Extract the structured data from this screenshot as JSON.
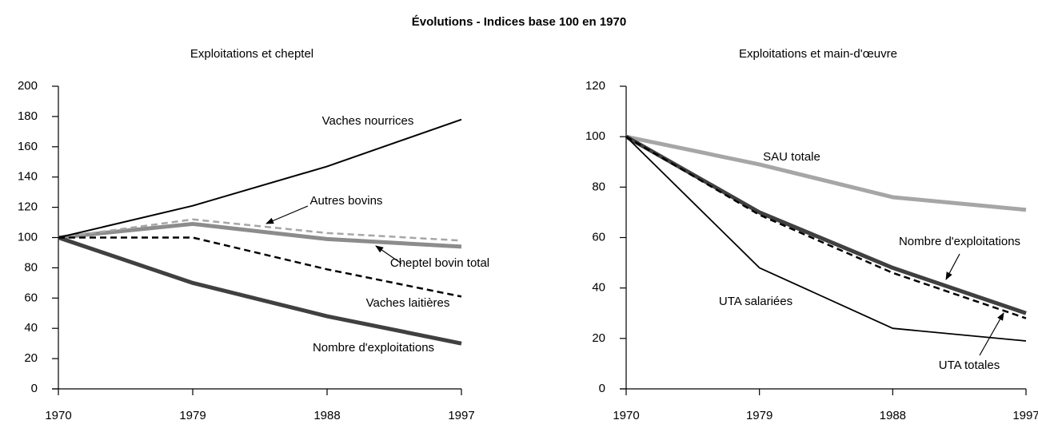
{
  "title": "Évolutions - Indices base 100 en 1970",
  "chart_data": [
    {
      "type": "line",
      "title": "Exploitations et cheptel",
      "x": [
        1970,
        1979,
        1988,
        1997
      ],
      "xlim": [
        1970,
        1997
      ],
      "xticks": [
        1970,
        1979,
        1988,
        1997
      ],
      "ylim": [
        0,
        200
      ],
      "yticks": [
        0,
        20,
        40,
        60,
        80,
        100,
        120,
        140,
        160,
        180,
        200
      ],
      "series": [
        {
          "name": "Vaches nourrices",
          "color": "#000000",
          "width": 2,
          "dash": false,
          "values": [
            100,
            121,
            147,
            178
          ]
        },
        {
          "name": "Autres bovins",
          "color": "#a6a6a6",
          "width": 2.5,
          "dash": true,
          "values": [
            100,
            112,
            103,
            98
          ]
        },
        {
          "name": "Cheptel bovin total",
          "color": "#8c8c8c",
          "width": 5,
          "dash": false,
          "values": [
            100,
            109,
            99,
            94
          ]
        },
        {
          "name": "Vaches laitières",
          "color": "#000000",
          "width": 2.5,
          "dash": true,
          "values": [
            100,
            100,
            79,
            61
          ]
        },
        {
          "name": "Nombre d'exploitations",
          "color": "#404040",
          "width": 5,
          "dash": false,
          "values": [
            100,
            70,
            48,
            30
          ]
        }
      ]
    },
    {
      "type": "line",
      "title": "Exploitations et  main-d'œuvre",
      "x": [
        1970,
        1979,
        1988,
        1997
      ],
      "xlim": [
        1970,
        1997
      ],
      "xticks": [
        1970,
        1979,
        1988,
        1997
      ],
      "ylim": [
        0,
        120
      ],
      "yticks": [
        0,
        20,
        40,
        60,
        80,
        100,
        120
      ],
      "series": [
        {
          "name": "SAU totale",
          "color": "#a6a6a6",
          "width": 5,
          "dash": false,
          "values": [
            100,
            89,
            76,
            71
          ]
        },
        {
          "name": "Nombre d'exploitations",
          "color": "#404040",
          "width": 5,
          "dash": false,
          "values": [
            100,
            70,
            48,
            30
          ]
        },
        {
          "name": "UTA totales",
          "color": "#000000",
          "width": 2.5,
          "dash": true,
          "values": [
            100,
            69,
            46,
            28
          ]
        },
        {
          "name": "UTA salariées",
          "color": "#000000",
          "width": 1.8,
          "dash": false,
          "values": [
            100,
            48,
            24,
            19
          ]
        }
      ]
    }
  ]
}
